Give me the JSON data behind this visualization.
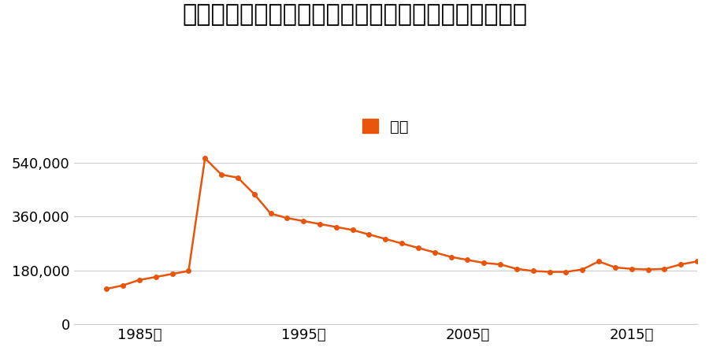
{
  "title": "東京都昭島市上川原町字八ケ下１１７番３の地価推移",
  "legend_label": "価格",
  "line_color": "#e8540a",
  "marker_color": "#e8540a",
  "background_color": "#ffffff",
  "years": [
    1983,
    1984,
    1985,
    1986,
    1987,
    1988,
    1989,
    1990,
    1991,
    1992,
    1993,
    1994,
    1995,
    1996,
    1997,
    1998,
    1999,
    2000,
    2001,
    2002,
    2003,
    2004,
    2005,
    2006,
    2007,
    2008,
    2009,
    2010,
    2011,
    2012,
    2013,
    2014,
    2015,
    2016,
    2017,
    2018,
    2019
  ],
  "values": [
    118000,
    130000,
    148000,
    158000,
    168000,
    178000,
    555000,
    500000,
    490000,
    435000,
    370000,
    355000,
    345000,
    335000,
    325000,
    315000,
    300000,
    285000,
    270000,
    255000,
    240000,
    225000,
    215000,
    205000,
    200000,
    185000,
    178000,
    175000,
    175000,
    183000,
    210000,
    190000,
    185000,
    183000,
    185000,
    200000,
    210000
  ],
  "xlim": [
    1981,
    2019
  ],
  "ylim": [
    0,
    600000
  ],
  "yticks": [
    0,
    180000,
    360000,
    540000
  ],
  "xtick_years": [
    1985,
    1995,
    2005,
    2015
  ],
  "title_fontsize": 22,
  "axis_fontsize": 13,
  "legend_fontsize": 14,
  "grid_color": "#cccccc"
}
